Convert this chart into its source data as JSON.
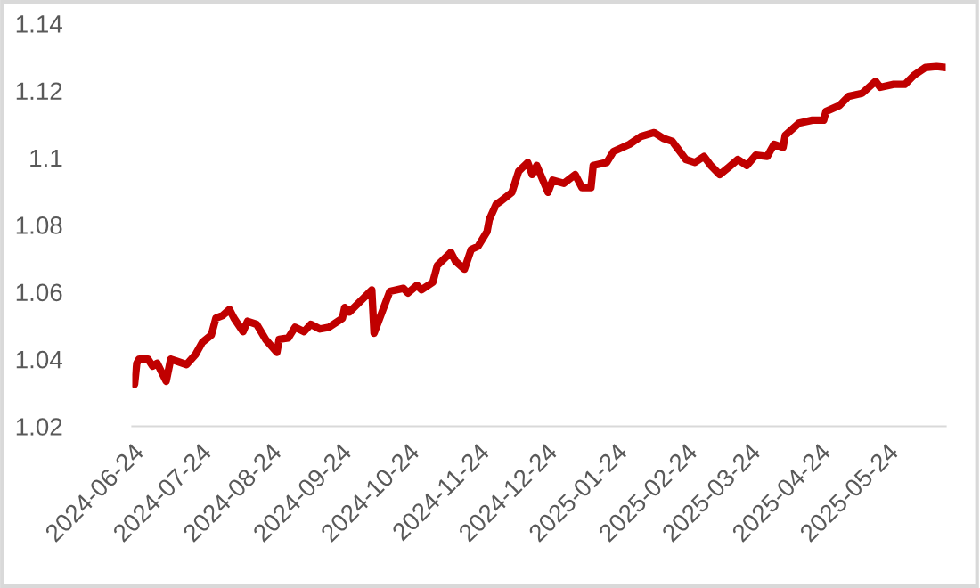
{
  "chart_data": {
    "type": "line",
    "x": [
      "2024-06-25",
      "2024-06-26",
      "2024-06-27",
      "2024-07-01",
      "2024-07-03",
      "2024-07-05",
      "2024-07-09",
      "2024-07-11",
      "2024-07-14",
      "2024-07-18",
      "2024-07-22",
      "2024-07-25",
      "2024-07-29",
      "2024-07-31",
      "2024-08-03",
      "2024-08-06",
      "2024-08-08",
      "2024-08-12",
      "2024-08-14",
      "2024-08-18",
      "2024-08-22",
      "2024-08-27",
      "2024-08-28",
      "2024-09-01",
      "2024-09-04",
      "2024-09-08",
      "2024-09-11",
      "2024-09-15",
      "2024-09-19",
      "2024-09-25",
      "2024-09-26",
      "2024-09-28",
      "2024-10-08",
      "2024-10-09",
      "2024-10-11",
      "2024-10-16",
      "2024-10-22",
      "2024-10-24",
      "2024-10-28",
      "2024-10-30",
      "2024-11-04",
      "2024-11-06",
      "2024-11-12",
      "2024-11-14",
      "2024-11-18",
      "2024-11-21",
      "2024-11-24",
      "2024-11-28",
      "2024-11-29",
      "2024-12-02",
      "2024-12-04",
      "2024-12-09",
      "2024-12-12",
      "2024-12-16",
      "2024-12-18",
      "2024-12-20",
      "2024-12-25",
      "2024-12-27",
      "2025-01-01",
      "2025-01-06",
      "2025-01-09",
      "2025-01-13",
      "2025-01-14",
      "2025-01-20",
      "2025-01-23",
      "2025-01-30",
      "2025-02-04",
      "2025-02-10",
      "2025-02-14",
      "2025-02-18",
      "2025-02-24",
      "2025-02-28",
      "2025-03-04",
      "2025-03-07",
      "2025-03-11",
      "2025-03-15",
      "2025-03-19",
      "2025-03-23",
      "2025-03-27",
      "2025-04-01",
      "2025-04-04",
      "2025-04-08",
      "2025-04-09",
      "2025-04-15",
      "2025-04-21",
      "2025-04-26",
      "2025-04-27",
      "2025-05-03",
      "2025-05-07",
      "2025-05-13",
      "2025-05-19",
      "2025-05-21",
      "2025-05-27",
      "2025-06-01",
      "2025-06-05",
      "2025-06-10",
      "2025-06-15",
      "2025-06-19"
    ],
    "series": [
      {
        "color": "#c00000",
        "values": [
          1.0325,
          1.0388,
          1.04,
          1.04,
          1.0379,
          1.0388,
          1.0334,
          1.04,
          1.0393,
          1.0384,
          1.0414,
          1.045,
          1.0472,
          1.0522,
          1.053,
          1.0548,
          1.0522,
          1.0482,
          1.0513,
          1.0504,
          1.0459,
          1.042,
          1.0459,
          1.0463,
          1.0495,
          1.0482,
          1.0504,
          1.049,
          1.0495,
          1.0522,
          1.0554,
          1.054,
          1.0606,
          1.0477,
          1.0513,
          1.0602,
          1.0611,
          1.0597,
          1.062,
          1.0607,
          1.0629,
          1.0679,
          1.0718,
          1.0692,
          1.0668,
          1.0727,
          1.0736,
          1.078,
          1.0816,
          1.0861,
          1.087,
          1.0897,
          1.096,
          1.0986,
          1.095,
          1.0977,
          1.0897,
          1.0933,
          1.0924,
          1.095,
          1.0911,
          1.0911,
          1.0977,
          1.0986,
          1.1019,
          1.104,
          1.1063,
          1.1075,
          1.1058,
          1.1049,
          1.0995,
          1.0986,
          1.1004,
          1.0977,
          1.095,
          1.0972,
          1.0995,
          1.0977,
          1.1008,
          1.1004,
          1.104,
          1.1031,
          1.1067,
          1.1103,
          1.1112,
          1.1112,
          1.1138,
          1.1156,
          1.1183,
          1.1192,
          1.1228,
          1.121,
          1.1219,
          1.1219,
          1.1246,
          1.1269,
          1.1272,
          1.1269
        ]
      }
    ],
    "xlim": [
      "2024-06-24",
      "2025-06-19"
    ],
    "xticks": [
      "2024-06-24",
      "2024-07-24",
      "2024-08-24",
      "2024-09-24",
      "2024-10-24",
      "2024-11-24",
      "2024-12-24",
      "2025-01-24",
      "2025-02-24",
      "2025-03-24",
      "2025-04-24",
      "2025-05-24"
    ],
    "ylim": [
      1.02,
      1.14
    ],
    "yticks": [
      1.02,
      1.04,
      1.06,
      1.08,
      1.1,
      1.12,
      1.14
    ],
    "grid": false,
    "legend": false,
    "marker": "none",
    "line_style": "solid"
  }
}
